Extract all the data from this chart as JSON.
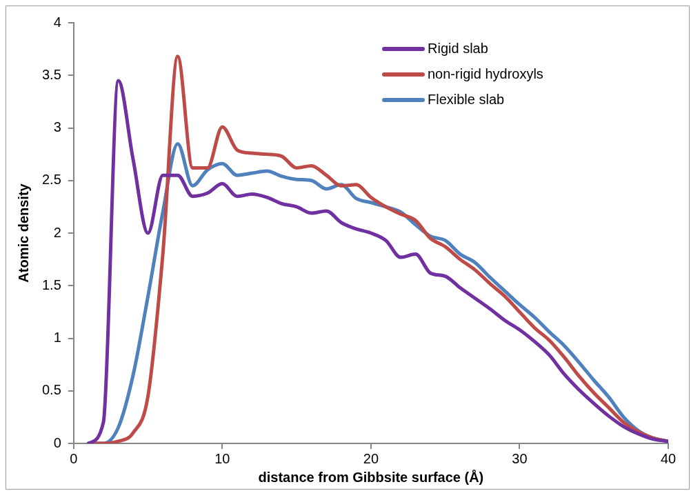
{
  "chart_data": {
    "type": "line",
    "xlabel": "distance from Gibbsite surface (Å)",
    "ylabel": "Atomic density",
    "x": [
      1,
      2,
      3,
      4,
      5,
      6,
      7,
      8,
      9,
      10,
      11,
      12,
      13,
      14,
      15,
      16,
      17,
      18,
      19,
      20,
      21,
      22,
      23,
      24,
      25,
      26,
      27,
      28,
      29,
      30,
      31,
      32,
      33,
      34,
      35,
      36,
      37,
      38,
      39,
      40
    ],
    "series": [
      {
        "name": "Rigid slab",
        "color": "#7030a0",
        "values": [
          0,
          0.2,
          3.45,
          2.7,
          2.0,
          2.55,
          2.55,
          2.35,
          2.38,
          2.47,
          2.35,
          2.37,
          2.34,
          2.28,
          2.25,
          2.19,
          2.21,
          2.1,
          2.04,
          2.0,
          1.93,
          1.77,
          1.8,
          1.62,
          1.59,
          1.48,
          1.38,
          1.28,
          1.17,
          1.08,
          0.97,
          0.84,
          0.66,
          0.51,
          0.38,
          0.26,
          0.16,
          0.09,
          0.04,
          0.02
        ]
      },
      {
        "name": "non-rigid hydroxyls",
        "color": "#be4b48",
        "values": [
          0,
          0,
          0.02,
          0.1,
          0.45,
          1.8,
          3.68,
          2.62,
          2.62,
          3.01,
          2.79,
          2.76,
          2.75,
          2.73,
          2.62,
          2.64,
          2.55,
          2.45,
          2.46,
          2.34,
          2.25,
          2.18,
          2.12,
          1.95,
          1.87,
          1.75,
          1.65,
          1.52,
          1.4,
          1.25,
          1.1,
          0.98,
          0.82,
          0.64,
          0.48,
          0.34,
          0.2,
          0.11,
          0.05,
          0.02
        ]
      },
      {
        "name": "Flexible slab",
        "color": "#4f81bd",
        "values": [
          0,
          0,
          0.15,
          0.65,
          1.4,
          2.2,
          2.85,
          2.45,
          2.6,
          2.66,
          2.55,
          2.57,
          2.59,
          2.54,
          2.51,
          2.5,
          2.42,
          2.46,
          2.33,
          2.29,
          2.25,
          2.2,
          2.08,
          1.97,
          1.93,
          1.8,
          1.72,
          1.58,
          1.45,
          1.32,
          1.2,
          1.06,
          0.93,
          0.77,
          0.6,
          0.44,
          0.25,
          0.12,
          0.05,
          0.02
        ]
      }
    ],
    "xlim": [
      0,
      40
    ],
    "xticks": [
      0,
      10,
      20,
      30,
      40
    ],
    "ylim": [
      0,
      4
    ],
    "yticks": [
      0,
      0.5,
      1,
      1.5,
      2,
      2.5,
      3,
      3.5,
      4
    ],
    "grid": false,
    "legend": "top right",
    "marker": "none",
    "line_style": "solid"
  }
}
